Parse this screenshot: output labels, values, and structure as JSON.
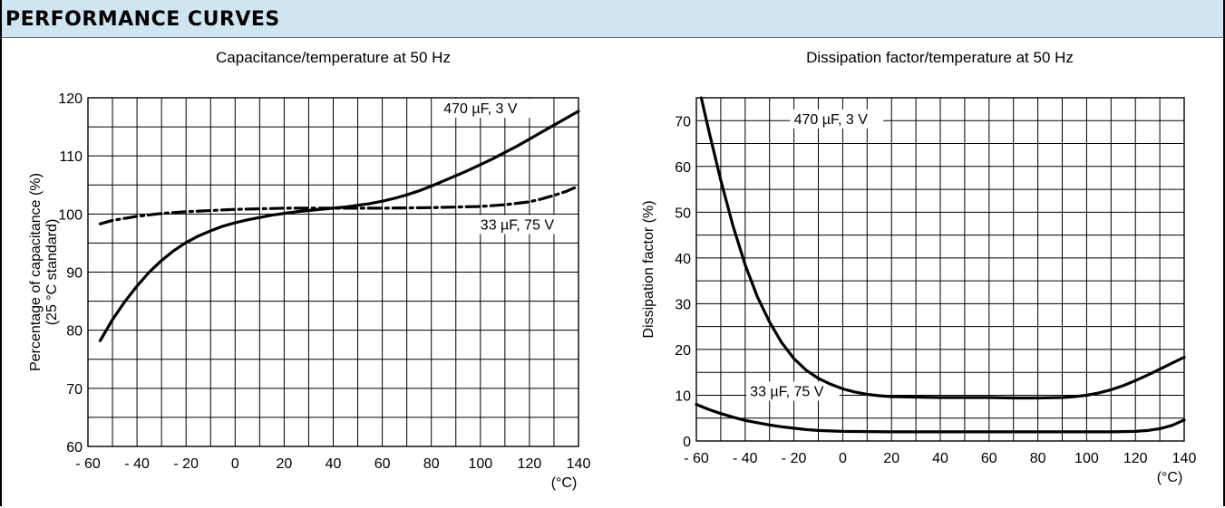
{
  "header": {
    "title": "PERFORMANCE CURVES"
  },
  "chart_data": [
    {
      "type": "line",
      "title": "Capacitance/temperature at 50 Hz",
      "ylabel_line1": "Percentage of capacitance (%)",
      "ylabel_line2": "(25 °C standard)",
      "xlabel": "(°C)",
      "xlim": [
        -60,
        140
      ],
      "ylim": [
        60,
        120
      ],
      "x_ticks": [
        -60,
        -40,
        -20,
        0,
        20,
        40,
        60,
        80,
        100,
        120,
        140
      ],
      "x_tick_labels": [
        "- 60",
        "- 40",
        "- 20",
        "0",
        "20",
        "40",
        "60",
        "80",
        "100",
        "120",
        "140"
      ],
      "y_ticks": [
        60,
        70,
        80,
        90,
        100,
        110,
        120
      ],
      "y_tick_labels": [
        "60",
        "70",
        "80",
        "90",
        "100",
        "110",
        "120"
      ],
      "grid": true,
      "series": [
        {
          "name": "470 µF, 3 V",
          "style": "solid",
          "x": [
            -55,
            -50,
            -45,
            -40,
            -35,
            -30,
            -25,
            -20,
            -15,
            -10,
            -5,
            0,
            5,
            10,
            15,
            20,
            25,
            30,
            35,
            40,
            45,
            50,
            55,
            60,
            65,
            70,
            75,
            80,
            85,
            90,
            95,
            100,
            105,
            110,
            115,
            120,
            125,
            130,
            135,
            140
          ],
          "y": [
            78.2,
            81.8,
            84.9,
            87.6,
            90.0,
            92.0,
            93.7,
            95.1,
            96.2,
            97.1,
            97.9,
            98.5,
            99.0,
            99.4,
            99.8,
            100.1,
            100.4,
            100.6,
            100.8,
            101.0,
            101.2,
            101.5,
            101.8,
            102.2,
            102.7,
            103.3,
            104.0,
            104.8,
            105.7,
            106.6,
            107.5,
            108.5,
            109.5,
            110.6,
            111.7,
            112.9,
            114.1,
            115.3,
            116.5,
            117.7
          ]
        },
        {
          "name": "33 µF, 75 V",
          "style": "dashdot",
          "x": [
            -55,
            -50,
            -40,
            -30,
            -20,
            -10,
            0,
            10,
            20,
            40,
            60,
            80,
            100,
            110,
            120,
            125,
            130,
            135,
            140
          ],
          "y": [
            98.3,
            98.9,
            99.6,
            100.1,
            100.4,
            100.6,
            100.8,
            100.9,
            101.0,
            101.0,
            101.0,
            101.1,
            101.3,
            101.6,
            102.1,
            102.6,
            103.2,
            103.9,
            104.8
          ]
        }
      ],
      "annotations": [
        {
          "text": "470 µF, 3 V",
          "x": 85,
          "y": 117.5
        },
        {
          "text": "33 µF, 75 V",
          "x": 100,
          "y": 97.5
        }
      ]
    },
    {
      "type": "line",
      "title": "Dissipation factor/temperature at 50 Hz",
      "ylabel": "Dissipation factor (%)",
      "xlabel": "(°C)",
      "xlim": [
        -60,
        140
      ],
      "ylim": [
        0,
        75
      ],
      "x_ticks": [
        -60,
        -40,
        -20,
        0,
        20,
        40,
        60,
        80,
        100,
        120,
        140
      ],
      "x_tick_labels": [
        "- 60",
        "- 40",
        "- 20",
        "0",
        "20",
        "40",
        "60",
        "80",
        "100",
        "120",
        "140"
      ],
      "y_ticks": [
        0,
        10,
        20,
        30,
        40,
        50,
        60,
        70
      ],
      "y_tick_labels": [
        "0",
        "10",
        "20",
        "30",
        "40",
        "50",
        "60",
        "70"
      ],
      "grid": true,
      "series": [
        {
          "name": "470 µF, 3 V",
          "style": "solid",
          "x": [
            -58,
            -55,
            -50,
            -45,
            -40,
            -35,
            -30,
            -25,
            -20,
            -15,
            -10,
            -5,
            0,
            5,
            10,
            15,
            20,
            30,
            40,
            50,
            60,
            70,
            80,
            90,
            95,
            100,
            105,
            110,
            115,
            120,
            125,
            130,
            135,
            140
          ],
          "y": [
            75,
            68,
            57,
            47,
            38.5,
            31.5,
            26,
            21.5,
            18,
            15.5,
            13.7,
            12.4,
            11.4,
            10.7,
            10.2,
            9.9,
            9.7,
            9.6,
            9.5,
            9.5,
            9.5,
            9.4,
            9.4,
            9.5,
            9.7,
            10.0,
            10.5,
            11.2,
            12.1,
            13.2,
            14.4,
            15.7,
            17.0,
            18.3
          ]
        },
        {
          "name": "33 µF, 75 V",
          "style": "solid",
          "x": [
            -60,
            -55,
            -50,
            -45,
            -40,
            -35,
            -30,
            -25,
            -20,
            -15,
            -10,
            -5,
            0,
            20,
            40,
            60,
            80,
            100,
            110,
            120,
            125,
            130,
            135,
            140
          ],
          "y": [
            8.0,
            6.9,
            6.0,
            5.2,
            4.5,
            4.0,
            3.5,
            3.1,
            2.8,
            2.5,
            2.3,
            2.2,
            2.1,
            2.0,
            2.0,
            2.0,
            2.0,
            2.0,
            2.0,
            2.1,
            2.3,
            2.7,
            3.4,
            4.6
          ]
        }
      ],
      "annotations": [
        {
          "text": "470 µF, 3 V",
          "x": -20,
          "y": 69.5
        },
        {
          "text": "33 µF, 75 V",
          "x": -38,
          "y": 10
        }
      ]
    }
  ]
}
